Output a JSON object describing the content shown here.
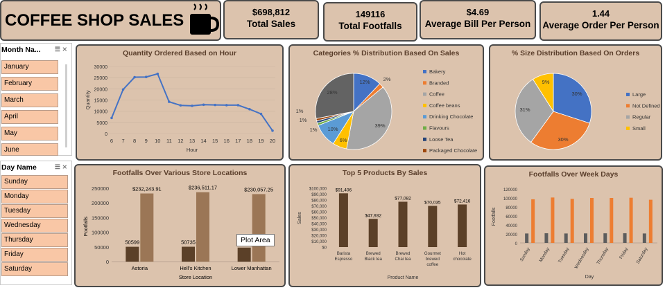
{
  "header": {
    "title": "COFFEE SHOP SALES",
    "icon": "coffee-cup-icon"
  },
  "kpis": [
    {
      "value": "$698,812",
      "label": "Total Sales"
    },
    {
      "value": "149116",
      "label": "Total Footfalls"
    },
    {
      "value": "$4.69",
      "label": "Average Bill Per Person"
    },
    {
      "value": "1.44",
      "label": "Average Order Per Person"
    }
  ],
  "month_slicer": {
    "title": "Month Na...",
    "items": [
      "January",
      "February",
      "March",
      "April",
      "May",
      "June"
    ]
  },
  "day_slicer": {
    "title": "Day Name",
    "items": [
      "Sunday",
      "Monday",
      "Tuesday",
      "Wednesday",
      "Thursday",
      "Friday",
      "Saturday"
    ]
  },
  "tooltip": "Plot Area",
  "colors": {
    "panel": "#dcc3ad",
    "slicer_item": "#f9c7a6",
    "line": "#4472c4",
    "bar_dark": "#5b4028",
    "bar_light": "#9b7656",
    "orange": "#ed7d31",
    "grey_bar": "#5d5d5d"
  },
  "chart_data": [
    {
      "type": "line",
      "title": "Quantity Ordered Based on Hour",
      "xlabel": "Hour",
      "ylabel": "Quantity",
      "x": [
        6,
        7,
        8,
        9,
        10,
        11,
        12,
        13,
        14,
        15,
        16,
        17,
        18,
        19,
        20
      ],
      "values": [
        7000,
        19700,
        25200,
        25300,
        26700,
        14200,
        12600,
        12400,
        12900,
        12800,
        12700,
        12700,
        10900,
        8800,
        1300
      ],
      "ylim": [
        0,
        30000
      ],
      "yticks": [
        0,
        5000,
        10000,
        15000,
        20000,
        25000,
        30000
      ]
    },
    {
      "type": "pie",
      "title": "Categories % Distribution Based On Sales",
      "labels": [
        "Bakery",
        "Branded",
        "Coffee",
        "Coffee beans",
        "Drinking Chocolate",
        "Flavours",
        "Loose Tea",
        "Packaged Chocolate",
        "Tea"
      ],
      "values": [
        12,
        2,
        39,
        6,
        10,
        1,
        1,
        1,
        28
      ],
      "data_labels": [
        "12%",
        "2%",
        "39%",
        "6%",
        "10%",
        "1%",
        "1%",
        "1%",
        "28%"
      ],
      "colors": [
        "#4472c4",
        "#ed7d31",
        "#a5a5a5",
        "#ffc000",
        "#5b9bd5",
        "#70ad47",
        "#264478",
        "#9e480e",
        "#636363"
      ],
      "legend": "right"
    },
    {
      "type": "pie",
      "title": "% Size Distribution Based On Orders",
      "labels": [
        "Large",
        "Not Defined",
        "Regular",
        "Small"
      ],
      "values": [
        30,
        30,
        31,
        9
      ],
      "data_labels": [
        "30%",
        "30%",
        "31%",
        "9%"
      ],
      "colors": [
        "#4472c4",
        "#ed7d31",
        "#a5a5a5",
        "#ffc000"
      ],
      "legend": "right"
    },
    {
      "type": "bar",
      "title": "Footfalls Over Various Store Locations",
      "xlabel": "Store Location",
      "ylabel": "Footfalls",
      "categories": [
        "Astoria",
        "Hell's Kitchen",
        "Lower Manhattan"
      ],
      "series": [
        {
          "values": [
            50599,
            50735,
            47782
          ],
          "labels": [
            "50599",
            "50735",
            ""
          ]
        },
        {
          "values": [
            232243.91,
            236511.17,
            230057.25
          ],
          "labels": [
            "$232,243.91",
            "$236,511.17",
            "$230,057.25"
          ]
        }
      ],
      "ylim": [
        0,
        250000
      ],
      "yticks": [
        0,
        50000,
        100000,
        150000,
        200000,
        250000
      ]
    },
    {
      "type": "bar",
      "title": "Top 5 Products  By Sales",
      "xlabel": "Product Name",
      "ylabel": "Sales",
      "categories": [
        "Barista Espresso",
        "Brewed Black tea",
        "Brewed Chai tea",
        "Gourmet brewed coffee",
        "Hot chocolate"
      ],
      "category_lines": [
        [
          "Barista",
          "Espresso"
        ],
        [
          "Brewed",
          "Black tea"
        ],
        [
          "Brewed",
          "Chai tea"
        ],
        [
          "Gourmet",
          "brewed",
          "coffee"
        ],
        [
          "Hot",
          "chocolate"
        ]
      ],
      "values": [
        91406,
        47932,
        77082,
        70035,
        72416
      ],
      "data_labels": [
        "$91,406",
        "$47,932",
        "$77,082",
        "$70,035",
        "$72,416"
      ],
      "ylim": [
        0,
        100000
      ],
      "yticks": [
        "$0",
        "$10,000",
        "$20,000",
        "$30,000",
        "$40,000",
        "$50,000",
        "$60,000",
        "$70,000",
        "$80,000",
        "$90,000",
        "$100,000"
      ]
    },
    {
      "type": "bar",
      "title": "Footfalls Over Week Days",
      "xlabel": "Day",
      "ylabel": "Footfalls",
      "categories": [
        "Sunday",
        "Monday",
        "Tuesday",
        "Wednesday",
        "Thursday",
        "Friday",
        "Saturday"
      ],
      "series": [
        {
          "values": [
            21000,
            21500,
            21000,
            21200,
            21400,
            21500,
            21000
          ]
        },
        {
          "values": [
            97000,
            101000,
            98000,
            100000,
            100000,
            100500,
            96000
          ]
        }
      ],
      "ylim": [
        0,
        120000
      ],
      "yticks": [
        0,
        20000,
        40000,
        60000,
        80000,
        100000,
        120000
      ]
    }
  ]
}
